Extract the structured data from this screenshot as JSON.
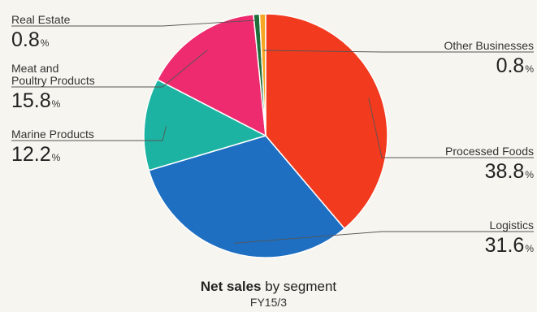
{
  "chart_data": {
    "type": "pie",
    "title_bold": "Net sales",
    "title_rest": " by segment",
    "subtitle": "FY15/3",
    "unit": "%",
    "slices": [
      {
        "name": "Processed Foods",
        "value": 38.8,
        "label": "38.8",
        "color": "#f23a1e"
      },
      {
        "name": "Logistics",
        "value": 31.6,
        "label": "31.6",
        "color": "#1e6fc2"
      },
      {
        "name": "Marine Products",
        "value": 12.2,
        "label": "12.2",
        "color": "#1db3a2"
      },
      {
        "name": "Meat and Poultry Products",
        "name_lines": [
          "Meat and",
          "Poultry Products"
        ],
        "value": 15.8,
        "label": "15.8",
        "color": "#ee2b6e"
      },
      {
        "name": "Real Estate",
        "value": 0.8,
        "label": "0.8",
        "color": "#1e6e3a"
      },
      {
        "name": "Other Businesses",
        "value": 0.8,
        "label": "0.8",
        "color": "#f5a623"
      }
    ]
  }
}
